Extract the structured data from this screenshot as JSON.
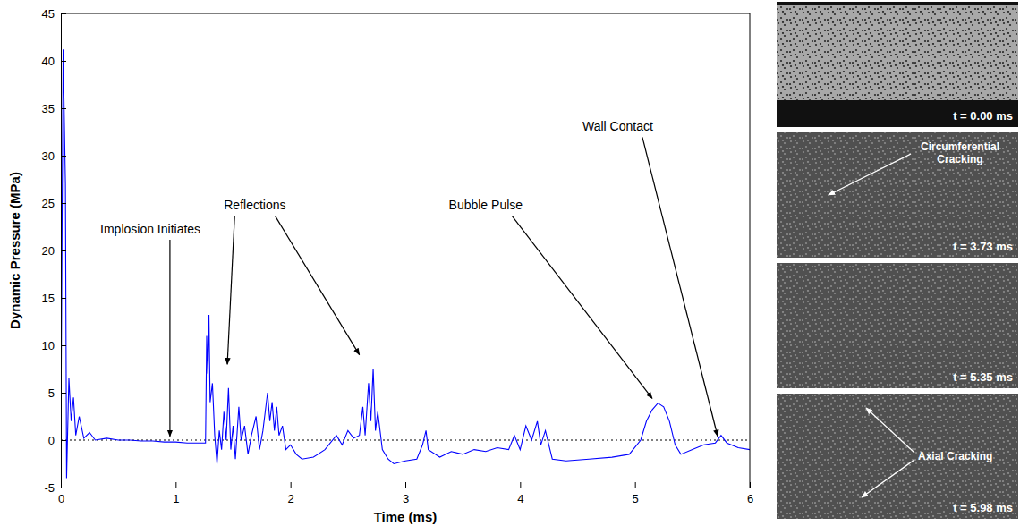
{
  "chart_data": {
    "type": "line",
    "x_label": "Time (ms)",
    "y_label": "Dynamic Pressure (MPa)",
    "xlim": [
      0,
      6
    ],
    "xticks": [
      0,
      1,
      2,
      3,
      4,
      5,
      6
    ],
    "ylim": [
      -5,
      45
    ],
    "yticks": [
      -5,
      0,
      5,
      10,
      15,
      20,
      25,
      30,
      35,
      40,
      45
    ],
    "grid": false,
    "x": [
      0.0,
      0.02,
      0.04,
      0.05,
      0.07,
      0.09,
      0.11,
      0.13,
      0.16,
      0.2,
      0.25,
      0.3,
      0.4,
      0.5,
      0.6,
      0.7,
      0.8,
      0.9,
      1.0,
      1.1,
      1.2,
      1.26,
      1.27,
      1.28,
      1.29,
      1.3,
      1.32,
      1.34,
      1.36,
      1.38,
      1.4,
      1.42,
      1.44,
      1.46,
      1.48,
      1.5,
      1.52,
      1.55,
      1.57,
      1.6,
      1.63,
      1.66,
      1.7,
      1.73,
      1.76,
      1.78,
      1.8,
      1.82,
      1.84,
      1.86,
      1.88,
      1.9,
      1.93,
      1.96,
      2.0,
      2.05,
      2.1,
      2.2,
      2.3,
      2.4,
      2.45,
      2.5,
      2.55,
      2.6,
      2.63,
      2.65,
      2.68,
      2.7,
      2.72,
      2.74,
      2.76,
      2.8,
      2.85,
      2.9,
      3.0,
      3.1,
      3.15,
      3.18,
      3.2,
      3.3,
      3.4,
      3.5,
      3.6,
      3.7,
      3.8,
      3.9,
      3.95,
      4.0,
      4.05,
      4.1,
      4.15,
      4.18,
      4.22,
      4.28,
      4.4,
      4.6,
      4.8,
      4.95,
      5.05,
      5.1,
      5.15,
      5.2,
      5.25,
      5.3,
      5.35,
      5.4,
      5.5,
      5.6,
      5.7,
      5.75,
      5.8,
      5.9,
      6.0
    ],
    "series": [
      {
        "name": "Dynamic Pressure",
        "color": "#0000ff",
        "line_style": "solid",
        "values": [
          0,
          41.2,
          27,
          -4,
          6.5,
          2,
          4.5,
          0.5,
          2.5,
          0.2,
          0.8,
          0,
          0.2,
          0,
          0,
          -0.1,
          -0.1,
          -0.2,
          -0.2,
          -0.3,
          -0.3,
          -0.3,
          11,
          7,
          13.2,
          4,
          6,
          0.5,
          -2.5,
          1,
          -1,
          3,
          0,
          5.5,
          -1,
          1.5,
          -2,
          3.5,
          0,
          1.5,
          -1.5,
          0.5,
          2.5,
          -1,
          1,
          3,
          5,
          2,
          4,
          1,
          3.5,
          0.5,
          1.5,
          -1,
          -0.5,
          -1.5,
          -2,
          -1.8,
          -1,
          0.5,
          -0.5,
          1,
          0.2,
          0.5,
          3.5,
          0.5,
          6,
          2,
          7.5,
          1,
          3,
          -1,
          -2,
          -2.5,
          -2.2,
          -2,
          -0.5,
          1,
          -1,
          -1.8,
          -1.2,
          -1.5,
          -1,
          -1.2,
          -0.8,
          -1,
          0.5,
          -1,
          1.5,
          0,
          2,
          -0.5,
          1,
          -2,
          -2.2,
          -2,
          -1.8,
          -1.5,
          0,
          2,
          3.2,
          3.9,
          3.5,
          2,
          -0.5,
          -1.5,
          -1,
          -0.5,
          -0.3,
          0.5,
          -0.3,
          -0.8,
          -1
        ]
      }
    ],
    "reference_lines": [
      {
        "y": 0,
        "color": "#000000",
        "line_style": "dotted"
      }
    ],
    "annotations": [
      {
        "text": "Implosion Initiates",
        "x": 0.78,
        "y": 21.8,
        "arrows": [
          {
            "x": 0.95,
            "y": 0.4
          }
        ]
      },
      {
        "text": "Reflections",
        "x": 1.69,
        "y": 24.3,
        "arrows": [
          {
            "x": 1.45,
            "y": 8
          },
          {
            "x": 2.6,
            "y": 9
          }
        ]
      },
      {
        "text": "Bubble Pulse",
        "x": 3.7,
        "y": 24.3,
        "arrows": [
          {
            "x": 5.15,
            "y": 4.4
          }
        ]
      },
      {
        "text": "Wall Contact",
        "x": 4.85,
        "y": 32.6,
        "arrows": [
          {
            "x": 5.72,
            "y": 0.4
          }
        ]
      }
    ]
  },
  "photo_panels": [
    {
      "label": "t = 0.00 ms"
    },
    {
      "label": "t = 3.73 ms",
      "annotation": "Circumferential Cracking"
    },
    {
      "label": "t = 5.35 ms"
    },
    {
      "label": "t = 5.98 ms",
      "annotation": "Axial Cracking"
    }
  ]
}
